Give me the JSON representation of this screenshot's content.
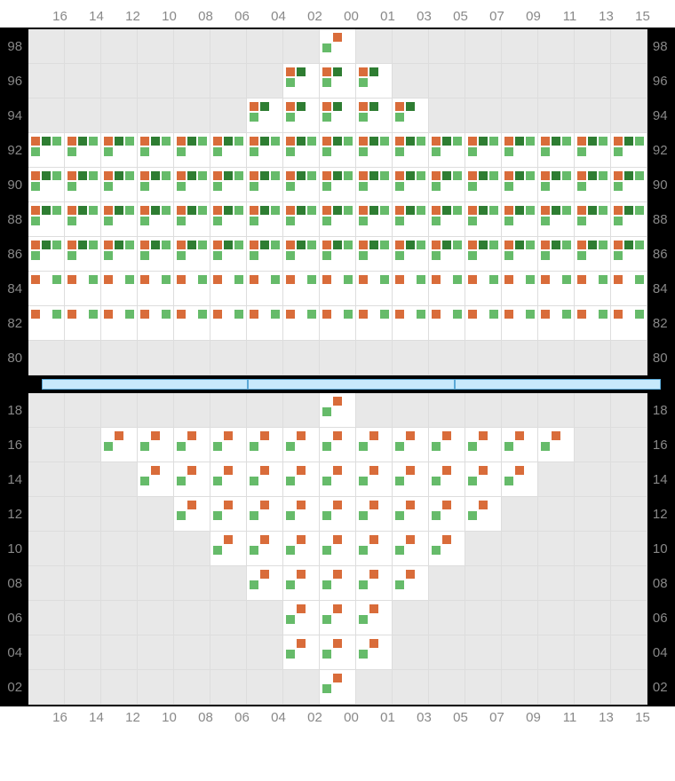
{
  "type": "grid-heatmap",
  "colors": {
    "background": "#ffffff",
    "grid_bg_empty": "#e8e8e8",
    "grid_bg_filled": "#ffffff",
    "grid_border": "#dddddd",
    "label": "#888888",
    "section_border": "#000000",
    "divider_fill": "#c7e9fb",
    "divider_border": "#5aa8d6",
    "square_orange": "#d96c3a",
    "square_dark_green": "#2e7d32",
    "square_light_green": "#66bb6a"
  },
  "label_fontsize": 15,
  "cell_size": {
    "w": 41,
    "h": 39
  },
  "square_size": 10,
  "columns": [
    "16",
    "14",
    "12",
    "10",
    "08",
    "06",
    "04",
    "02",
    "00",
    "01",
    "03",
    "05",
    "07",
    "09",
    "11",
    "13",
    "15"
  ],
  "divider_segments": 3,
  "patterns": {
    "A": [
      "o",
      "dg",
      "lg",
      "lg"
    ],
    "B": [
      "o",
      "dg",
      "bl",
      "lg"
    ],
    "C": [
      "o",
      "bl",
      "lg",
      "bl"
    ],
    "a": [
      "bl",
      "o",
      "bl",
      "lg"
    ]
  },
  "top": {
    "rows": [
      "98",
      "96",
      "94",
      "92",
      "90",
      "88",
      "86",
      "84",
      "82",
      "80"
    ],
    "cells": [
      [
        null,
        null,
        null,
        null,
        null,
        null,
        null,
        null,
        "a",
        null,
        null,
        null,
        null,
        null,
        null,
        null,
        null
      ],
      [
        null,
        null,
        null,
        null,
        null,
        null,
        null,
        "B",
        "B",
        "B",
        null,
        null,
        null,
        null,
        null,
        null,
        null
      ],
      [
        null,
        null,
        null,
        null,
        null,
        null,
        "B",
        "B",
        "B",
        "B",
        "B",
        null,
        null,
        null,
        null,
        null,
        null
      ],
      [
        "A",
        "A",
        "A",
        "A",
        "A",
        "A",
        "A",
        "A",
        "A",
        "A",
        "A",
        "A",
        "A",
        "A",
        "A",
        "A",
        "A"
      ],
      [
        "A",
        "A",
        "A",
        "A",
        "A",
        "A",
        "A",
        "A",
        "A",
        "A",
        "A",
        "A",
        "A",
        "A",
        "A",
        "A",
        "A"
      ],
      [
        "A",
        "A",
        "A",
        "A",
        "A",
        "A",
        "A",
        "A",
        "A",
        "A",
        "A",
        "A",
        "A",
        "A",
        "A",
        "A",
        "A"
      ],
      [
        "A",
        "A",
        "A",
        "A",
        "A",
        "A",
        "A",
        "A",
        "A",
        "A",
        "A",
        "A",
        "A",
        "A",
        "A",
        "A",
        "A"
      ],
      [
        "C",
        "C",
        "C",
        "C",
        "C",
        "C",
        "C",
        "C",
        "C",
        "C",
        "C",
        "C",
        "C",
        "C",
        "C",
        "C",
        "C"
      ],
      [
        "C",
        "C",
        "C",
        "C",
        "C",
        "C",
        "C",
        "C",
        "C",
        "C",
        "C",
        "C",
        "C",
        "C",
        "C",
        "C",
        "C"
      ],
      [
        null,
        null,
        null,
        null,
        null,
        null,
        null,
        null,
        null,
        null,
        null,
        null,
        null,
        null,
        null,
        null,
        null
      ]
    ]
  },
  "bottom": {
    "rows": [
      "18",
      "16",
      "14",
      "12",
      "10",
      "08",
      "06",
      "04",
      "02"
    ],
    "cells": [
      [
        null,
        null,
        null,
        null,
        null,
        null,
        null,
        null,
        "a",
        null,
        null,
        null,
        null,
        null,
        null,
        null,
        null
      ],
      [
        null,
        null,
        "a",
        "a",
        "a",
        "a",
        "a",
        "a",
        "a",
        "a",
        "a",
        "a",
        "a",
        "a",
        "a",
        null,
        null
      ],
      [
        null,
        null,
        null,
        "a",
        "a",
        "a",
        "a",
        "a",
        "a",
        "a",
        "a",
        "a",
        "a",
        "a",
        null,
        null,
        null
      ],
      [
        null,
        null,
        null,
        null,
        "a",
        "a",
        "a",
        "a",
        "a",
        "a",
        "a",
        "a",
        "a",
        null,
        null,
        null,
        null
      ],
      [
        null,
        null,
        null,
        null,
        null,
        "a",
        "a",
        "a",
        "a",
        "a",
        "a",
        "a",
        null,
        null,
        null,
        null,
        null
      ],
      [
        null,
        null,
        null,
        null,
        null,
        null,
        "a",
        "a",
        "a",
        "a",
        "a",
        null,
        null,
        null,
        null,
        null,
        null
      ],
      [
        null,
        null,
        null,
        null,
        null,
        null,
        null,
        "a",
        "a",
        "a",
        null,
        null,
        null,
        null,
        null,
        null,
        null
      ],
      [
        null,
        null,
        null,
        null,
        null,
        null,
        null,
        "a",
        "a",
        "a",
        null,
        null,
        null,
        null,
        null,
        null,
        null
      ],
      [
        null,
        null,
        null,
        null,
        null,
        null,
        null,
        null,
        "a",
        null,
        null,
        null,
        null,
        null,
        null,
        null,
        null
      ]
    ]
  }
}
